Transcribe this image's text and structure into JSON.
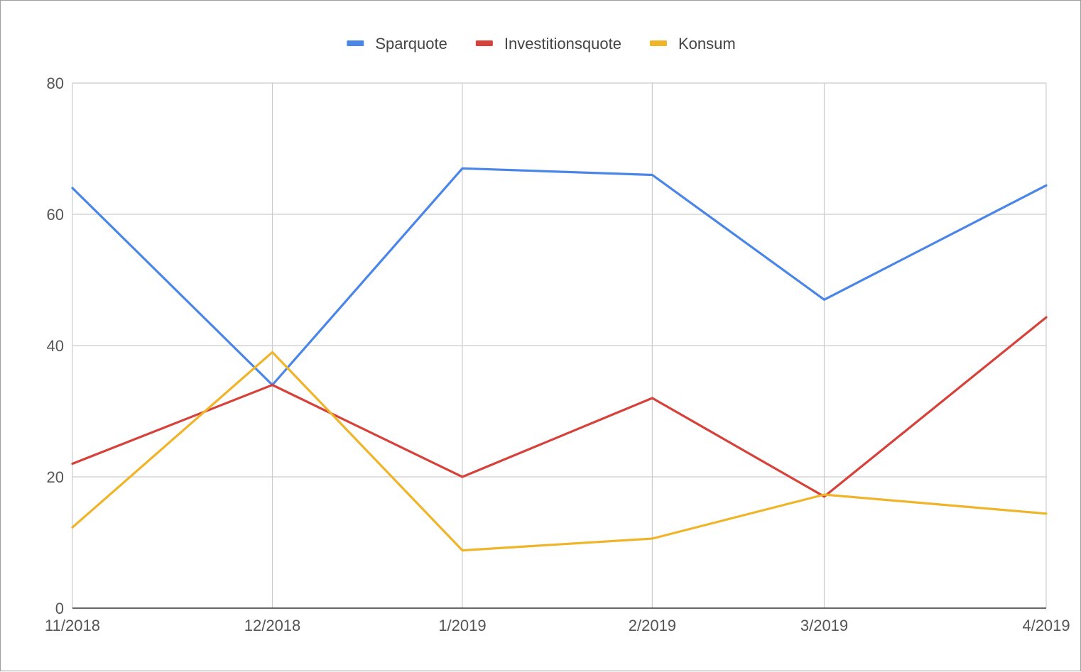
{
  "chart_data": {
    "type": "line",
    "title": "",
    "xlabel": "",
    "ylabel": "",
    "categories": [
      "11/2018",
      "12/2018",
      "1/2019",
      "2/2019",
      "3/2019",
      "4/2019"
    ],
    "x_positions": [
      0,
      1,
      1.95,
      2.9,
      3.76,
      4.87
    ],
    "ylim": [
      0,
      80
    ],
    "yticks": [
      "0",
      "20",
      "40",
      "60",
      "80"
    ],
    "grid": true,
    "legend_position": "top-center",
    "series": [
      {
        "name": "Sparquote",
        "color": "#4a86e8",
        "values": [
          64,
          34,
          67,
          66,
          47,
          64.4
        ]
      },
      {
        "name": "Investitionsquote",
        "color": "#d6413a",
        "values": [
          22,
          34,
          20,
          32,
          17,
          44.3
        ]
      },
      {
        "name": "Konsum",
        "color": "#f0b429",
        "values": [
          12.3,
          39,
          8.8,
          10.6,
          17.3,
          14.4
        ]
      }
    ]
  }
}
